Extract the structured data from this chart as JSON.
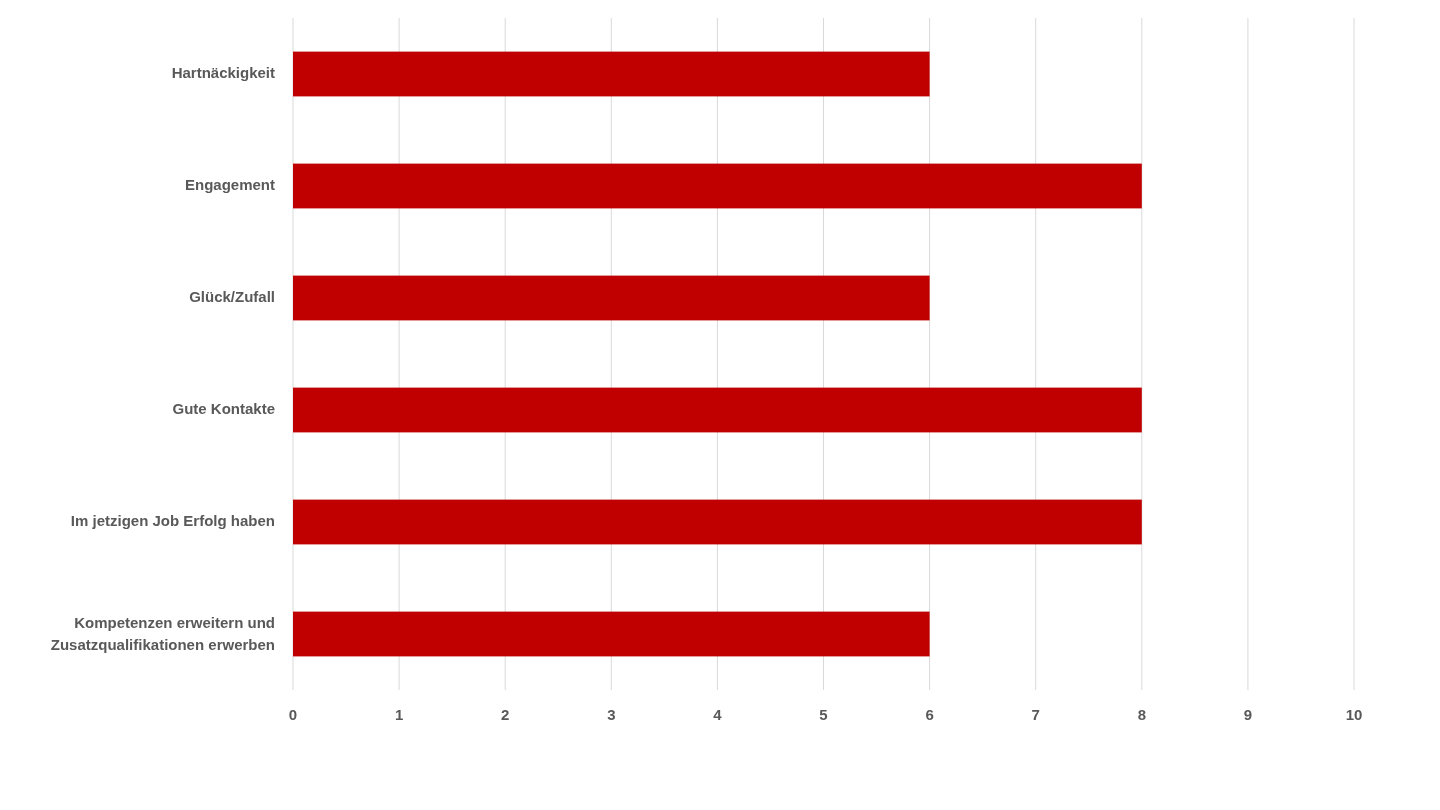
{
  "chart_data": {
    "type": "bar",
    "orientation": "horizontal",
    "categories": [
      "Hartnäckigkeit",
      "Engagement",
      "Glück/Zufall",
      "Gute Kontakte",
      "Im jetzigen Job Erfolg haben",
      "Kompetenzen erweitern und Zusatzqualifikationen erwerben"
    ],
    "values": [
      6,
      8,
      6,
      8,
      8,
      6
    ],
    "color": "#c00000",
    "xlim": [
      0,
      10
    ],
    "xticks": [
      0,
      1,
      2,
      3,
      4,
      5,
      6,
      7,
      8,
      9,
      10
    ],
    "grid": "x"
  }
}
